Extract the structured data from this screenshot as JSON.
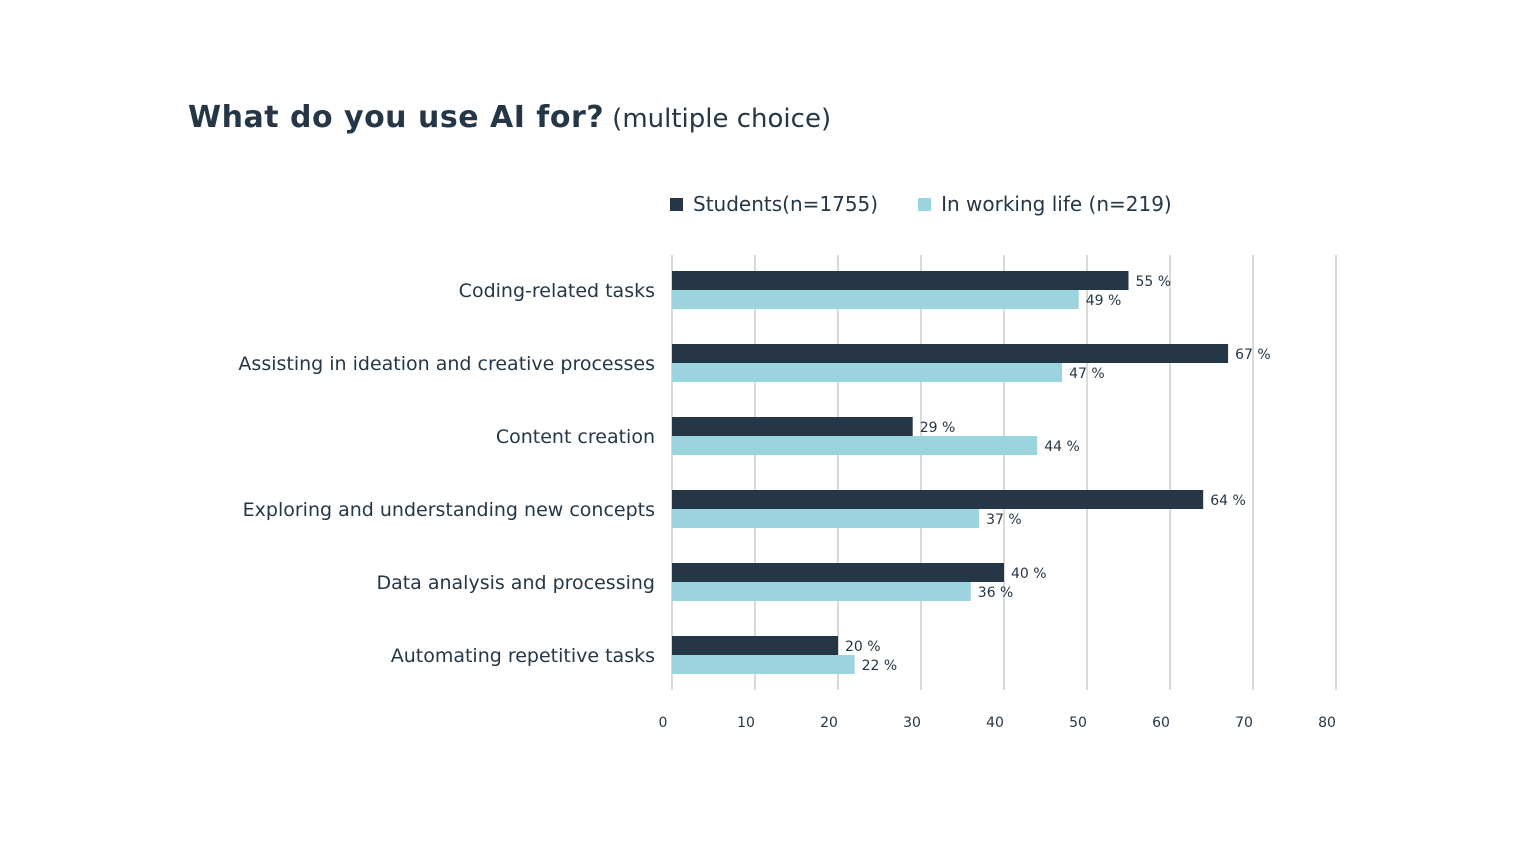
{
  "chart_data": {
    "type": "bar",
    "orientation": "horizontal",
    "title": "What do you use AI for?",
    "subtitle": "(multiple choice)",
    "categories": [
      "Coding-related tasks",
      "Assisting in ideation and creative processes",
      "Content creation",
      "Exploring and understanding new concepts",
      "Data analysis and processing",
      "Automating repetitive tasks"
    ],
    "series": [
      {
        "name": "Students(n=1755)",
        "color": "#253746",
        "values": [
          55,
          67,
          29,
          64,
          40,
          20
        ]
      },
      {
        "name": "In working life (n=219)",
        "color": "#9bd3de",
        "values": [
          49,
          47,
          44,
          37,
          36,
          22
        ]
      }
    ],
    "value_suffix": " %",
    "xlim": [
      0,
      80
    ],
    "xticks": [
      "0",
      "10",
      "20",
      "30",
      "40",
      "50",
      "60",
      "70",
      "80"
    ],
    "grid": true,
    "legend_position": "top"
  }
}
